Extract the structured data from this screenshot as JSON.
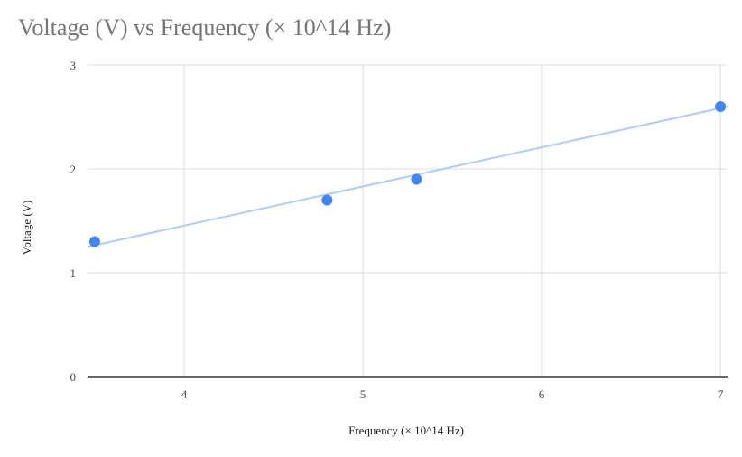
{
  "chart_data": {
    "type": "scatter",
    "title": "Voltage (V) vs Frequency (× 10^14 Hz)",
    "xlabel": "Frequency (× 10^14 Hz)",
    "ylabel": "Voltage (V)",
    "xlim": [
      3.46,
      7.04
    ],
    "ylim": [
      0,
      3
    ],
    "x_ticks": [
      4,
      5,
      6,
      7
    ],
    "y_ticks": [
      0,
      1,
      2,
      3
    ],
    "grid": true,
    "legend": "none",
    "series": [
      {
        "points": [
          {
            "x": 3.5,
            "y": 1.3
          },
          {
            "x": 4.8,
            "y": 1.7
          },
          {
            "x": 5.3,
            "y": 1.9
          },
          {
            "x": 7.0,
            "y": 2.6
          }
        ],
        "color": "#4285f4"
      }
    ],
    "trendline": {
      "type": "linear",
      "from": {
        "x": 3.46,
        "y": 1.25
      },
      "to": {
        "x": 7.04,
        "y": 2.6
      },
      "color": "#aecbfa"
    }
  }
}
